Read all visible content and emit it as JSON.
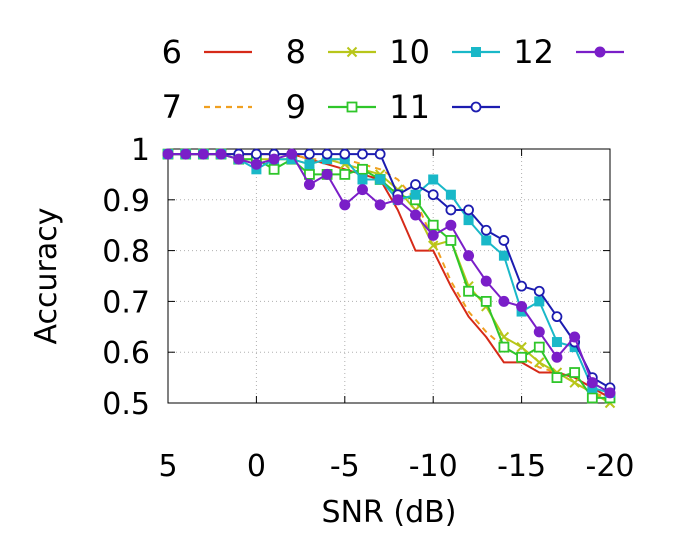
{
  "chart_data": {
    "type": "line",
    "xlabel": "SNR (dB)",
    "ylabel": "Accuracy",
    "xlim": [
      5,
      -20
    ],
    "ylim": [
      0.5,
      1
    ],
    "xticks": [
      5,
      0,
      -5,
      -10,
      -15,
      -20
    ],
    "xtick_labels": [
      "5",
      "0",
      "-5",
      "-10",
      "-15",
      "-20"
    ],
    "yticks": [
      0.5,
      0.6,
      0.7,
      0.8,
      0.9,
      1
    ],
    "ytick_labels": [
      "0.5",
      "0.6",
      "0.7",
      "0.8",
      "0.9",
      "1"
    ],
    "grid": true,
    "legend_position": "top",
    "x": [
      5,
      4,
      3,
      2,
      1,
      0,
      -1,
      -2,
      -3,
      -4,
      -5,
      -6,
      -7,
      -8,
      -9,
      -10,
      -11,
      -12,
      -13,
      -14,
      -15,
      -16,
      -17,
      -18,
      -19,
      -20
    ],
    "series": [
      {
        "name": "6",
        "color": "#d62a18",
        "style": "solid",
        "marker": "none",
        "values": [
          0.99,
          0.99,
          0.99,
          0.99,
          0.99,
          0.99,
          0.99,
          0.99,
          0.98,
          0.97,
          0.96,
          0.95,
          0.94,
          0.88,
          0.8,
          0.8,
          0.73,
          0.67,
          0.63,
          0.58,
          0.58,
          0.56,
          0.56,
          0.55,
          0.53,
          0.51
        ]
      },
      {
        "name": "7",
        "color": "#f0a020",
        "style": "dashed",
        "marker": "none",
        "values": [
          0.99,
          0.99,
          0.99,
          0.99,
          0.99,
          0.99,
          0.99,
          0.99,
          0.98,
          0.98,
          0.98,
          0.97,
          0.96,
          0.94,
          0.9,
          0.82,
          0.74,
          0.68,
          0.64,
          0.61,
          0.59,
          0.57,
          0.56,
          0.54,
          0.52,
          0.51
        ]
      },
      {
        "name": "8",
        "color": "#b8c61a",
        "style": "solid",
        "marker": "x",
        "values": [
          0.99,
          0.99,
          0.99,
          0.99,
          0.98,
          0.98,
          0.98,
          0.98,
          0.97,
          0.98,
          0.97,
          0.96,
          0.95,
          0.92,
          0.88,
          0.81,
          0.82,
          0.73,
          0.69,
          0.63,
          0.61,
          0.58,
          0.56,
          0.54,
          0.52,
          0.5
        ]
      },
      {
        "name": "9",
        "color": "#2fc62a",
        "style": "solid",
        "marker": "open-square",
        "values": [
          0.99,
          0.99,
          0.99,
          0.99,
          0.98,
          0.98,
          0.96,
          0.98,
          0.95,
          0.95,
          0.95,
          0.96,
          0.94,
          0.91,
          0.9,
          0.85,
          0.82,
          0.72,
          0.7,
          0.61,
          0.59,
          0.61,
          0.55,
          0.56,
          0.51,
          0.51
        ]
      },
      {
        "name": "10",
        "color": "#19b8c8",
        "style": "solid",
        "marker": "filled-square",
        "values": [
          0.99,
          0.99,
          0.99,
          0.99,
          0.98,
          0.96,
          0.98,
          0.98,
          0.97,
          0.98,
          0.98,
          0.94,
          0.94,
          0.9,
          0.91,
          0.94,
          0.91,
          0.86,
          0.82,
          0.79,
          0.68,
          0.7,
          0.62,
          0.61,
          0.53,
          0.52
        ]
      },
      {
        "name": "11",
        "color": "#1c1cb0",
        "style": "solid",
        "marker": "open-circle",
        "values": [
          0.99,
          0.99,
          0.99,
          0.99,
          0.99,
          0.99,
          0.99,
          0.99,
          0.99,
          0.99,
          0.99,
          0.99,
          0.99,
          0.91,
          0.93,
          0.91,
          0.88,
          0.88,
          0.84,
          0.82,
          0.73,
          0.72,
          0.67,
          0.62,
          0.55,
          0.53
        ]
      },
      {
        "name": "12",
        "color": "#7a1ec8",
        "style": "solid",
        "marker": "filled-circle",
        "values": [
          0.99,
          0.99,
          0.99,
          0.99,
          0.98,
          0.97,
          0.98,
          0.99,
          0.93,
          0.95,
          0.89,
          0.92,
          0.89,
          0.9,
          0.87,
          0.83,
          0.85,
          0.79,
          0.74,
          0.7,
          0.69,
          0.64,
          0.59,
          0.63,
          0.54,
          0.52
        ]
      }
    ]
  }
}
